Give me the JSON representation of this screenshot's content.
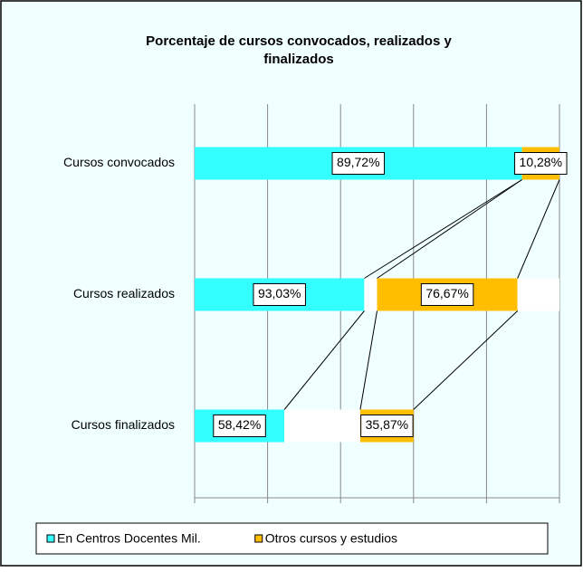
{
  "chart_data": {
    "type": "bar",
    "orientation": "horizontal",
    "stacked": true,
    "title": [
      "Porcentaje de cursos  convocados, realizados y",
      "finalizados"
    ],
    "categories": [
      "Cursos convocados",
      "Cursos realizados",
      "Cursos finalizados"
    ],
    "xlim": [
      0,
      100
    ],
    "xticks": [
      0,
      20,
      40,
      60,
      80,
      100
    ],
    "grid": true,
    "legend": "bottom",
    "series": [
      {
        "name": "En Centros Docentes Mil.",
        "color": "#33ffff",
        "values": [
          89.72,
          46.5,
          24.6
        ],
        "value_labels": [
          "89,72%",
          "93,03%",
          "58,42%"
        ]
      },
      {
        "color": "#ffffff",
        "values": [
          0,
          3.5,
          20.8
        ]
      },
      {
        "name": "Otros cursos y estudios",
        "color": "#ffbf00",
        "values": [
          10.28,
          38.5,
          14.6
        ],
        "value_labels": [
          "10,28%",
          "76,67%",
          "35,87%"
        ]
      },
      {
        "color": "#ffffff",
        "values": [
          0,
          11.5,
          0
        ]
      }
    ]
  }
}
